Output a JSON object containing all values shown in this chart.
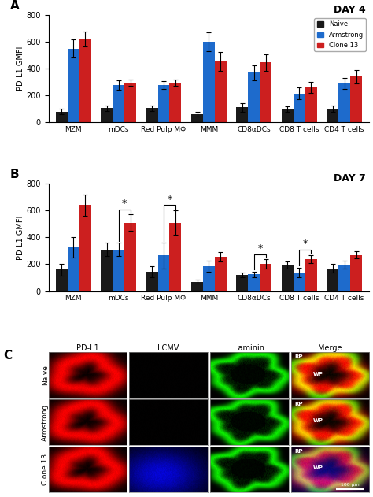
{
  "panel_A": {
    "title": "DAY 4",
    "categories": [
      "MZM",
      "mDCs",
      "Red Pulp MΦ",
      "MMM",
      "CD8αDCs",
      "CD8 T cells",
      "CD4 T cells"
    ],
    "naive": [
      80,
      105,
      105,
      60,
      110,
      100,
      100
    ],
    "armstrong": [
      550,
      275,
      275,
      600,
      370,
      215,
      290
    ],
    "clone13": [
      620,
      295,
      295,
      455,
      445,
      260,
      340
    ],
    "naive_err": [
      20,
      20,
      20,
      15,
      30,
      20,
      25
    ],
    "armstrong_err": [
      70,
      35,
      30,
      70,
      55,
      45,
      40
    ],
    "clone13_err": [
      55,
      25,
      25,
      70,
      60,
      40,
      50
    ],
    "ylabel": "PD-L1 GMFI",
    "ylim": [
      0,
      800
    ]
  },
  "panel_B": {
    "title": "DAY 7",
    "categories": [
      "MZM",
      "mDCs",
      "Red Pulp MΦ",
      "MMM",
      "CD8αDCs",
      "CD8 T cells",
      "CD4 T cells"
    ],
    "naive": [
      160,
      310,
      145,
      70,
      120,
      195,
      170
    ],
    "armstrong": [
      325,
      310,
      265,
      185,
      125,
      140,
      195
    ],
    "clone13": [
      640,
      510,
      510,
      255,
      200,
      240,
      270
    ],
    "naive_err": [
      45,
      50,
      40,
      15,
      20,
      25,
      30
    ],
    "armstrong_err": [
      75,
      50,
      95,
      40,
      20,
      35,
      30
    ],
    "clone13_err": [
      80,
      60,
      90,
      35,
      35,
      30,
      25
    ],
    "ylabel": "PD-L1 GMFI",
    "ylim": [
      0,
      800
    ]
  },
  "colors": {
    "naive": "#1a1a1a",
    "armstrong": "#1e6bcc",
    "clone13": "#cc1f1f"
  },
  "legend": {
    "naive": "Naive",
    "armstrong": "Armstrong",
    "clone13": "Clone 13"
  },
  "panel_C": {
    "col_labels": [
      "PD-L1",
      "LCMV",
      "Laminin",
      "Merge"
    ],
    "row_labels": [
      "Naive",
      "Armstrong",
      "Clone 13"
    ]
  }
}
